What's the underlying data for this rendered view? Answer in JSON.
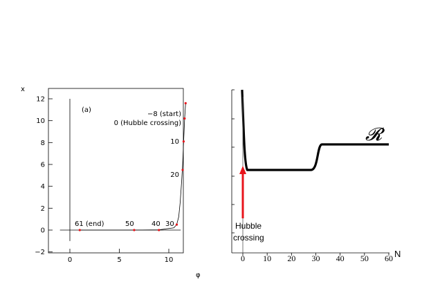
{
  "chart_data": [
    {
      "type": "line",
      "panel_label": "(a)",
      "xlabel": "φ",
      "ylabel": "x",
      "xlim": [
        -2,
        13
      ],
      "ylim": [
        -2,
        13
      ],
      "xticks": [
        0,
        5,
        10
      ],
      "yticks": [
        -2,
        0,
        2,
        4,
        6,
        8,
        10,
        12
      ],
      "xtick_labels": [
        "0",
        "5",
        "10"
      ],
      "ytick_labels": [
        "−2",
        "0",
        "2",
        "4",
        "6",
        "8",
        "10",
        "12"
      ],
      "series": [
        {
          "x": [
            1.0,
            4.0,
            6.5,
            9.0,
            10.5,
            10.8,
            11.0,
            11.15,
            11.3,
            11.4,
            11.5,
            11.6,
            11.7
          ],
          "y": [
            0,
            0,
            0,
            0.02,
            0.2,
            0.5,
            1.2,
            2.5,
            4.5,
            6.0,
            8.1,
            10.2,
            11.6
          ]
        }
      ],
      "marked_points": [
        {
          "x": 1.0,
          "y": 0.0,
          "label": "61 (end)"
        },
        {
          "x": 6.5,
          "y": 0.0,
          "label": "50"
        },
        {
          "x": 9.0,
          "y": 0.0,
          "label": "40"
        },
        {
          "x": 10.8,
          "y": 0.5,
          "label": "30"
        },
        {
          "x": 11.4,
          "y": 5.5,
          "label": "20"
        },
        {
          "x": 11.5,
          "y": 8.1,
          "label": "10"
        },
        {
          "x": 11.6,
          "y": 10.2,
          "label": "0 (Hubble crossing)"
        },
        {
          "x": 11.7,
          "y": 11.6,
          "label": "−8 (start)"
        }
      ],
      "colors": {
        "markers": "#e8141b",
        "line": "#000000"
      }
    },
    {
      "type": "line",
      "curve_label": "𝓡",
      "xlabel": "N",
      "xlim": [
        -2,
        60
      ],
      "xticks": [
        0,
        10,
        20,
        30,
        40,
        50,
        60
      ],
      "xtick_labels": [
        "0",
        "10",
        "20",
        "30",
        "40",
        "50",
        "60"
      ],
      "annotation": {
        "text_line1": "Hubble",
        "text_line2": "crossing",
        "x": 0
      },
      "series": [
        {
          "x": [
            -0.5,
            0,
            1,
            2,
            5,
            10,
            20,
            28,
            30,
            31,
            32,
            33,
            40,
            50,
            60
          ],
          "y": [
            8.0,
            6.2,
            4.2,
            3.4,
            3.4,
            3.4,
            3.4,
            3.42,
            3.6,
            4.2,
            4.6,
            4.7,
            4.7,
            4.7,
            4.7
          ]
        }
      ],
      "colors": {
        "curve": "#000000",
        "arrow": "#e8141b"
      }
    }
  ]
}
